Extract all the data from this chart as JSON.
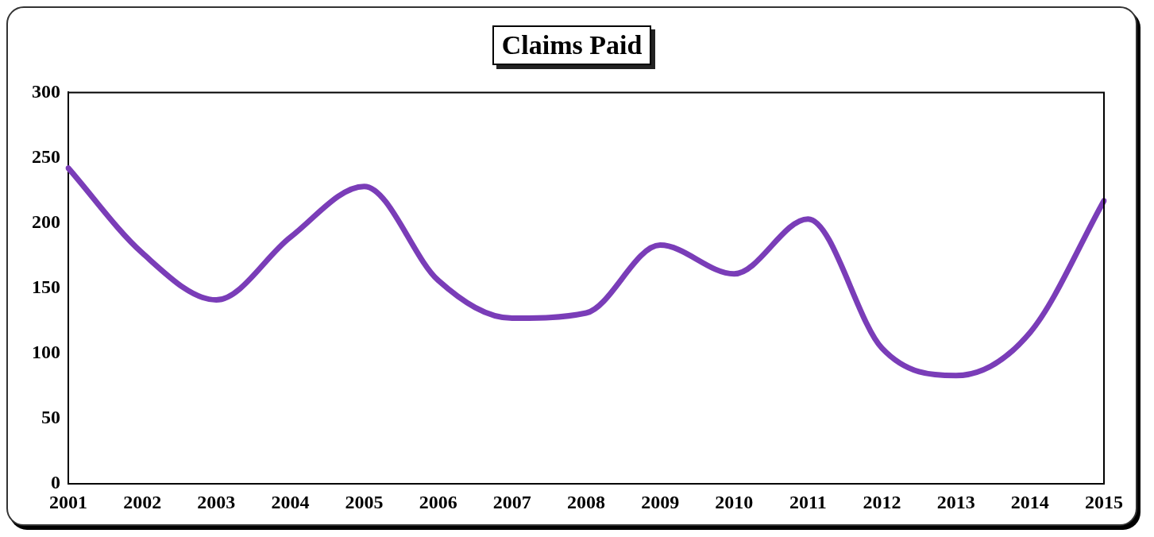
{
  "chart_data": {
    "type": "line",
    "title": "Claims Paid",
    "categories": [
      "2001",
      "2002",
      "2003",
      "2004",
      "2005",
      "2006",
      "2007",
      "2008",
      "2009",
      "2010",
      "2011",
      "2012",
      "2013",
      "2014",
      "2015"
    ],
    "series": [
      {
        "color": "#7a3db8",
        "values": [
          242,
          177,
          141,
          189,
          228,
          156,
          127,
          131,
          183,
          161,
          203,
          104,
          83,
          116,
          217
        ]
      }
    ],
    "ylim": [
      0,
      300
    ],
    "yticks": [
      0,
      50,
      100,
      150,
      200,
      250,
      300
    ],
    "grid": false,
    "legend": false,
    "marker": "none",
    "line_style": "solid"
  }
}
